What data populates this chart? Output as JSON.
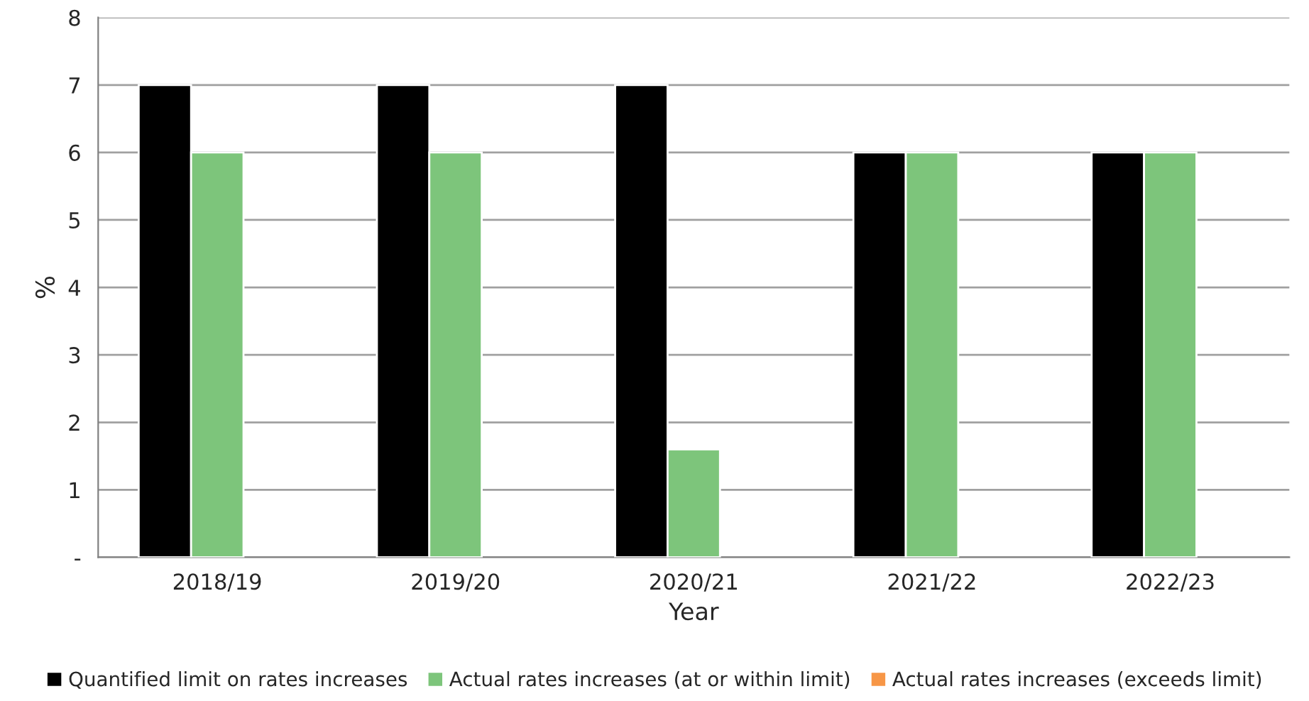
{
  "chart_data": {
    "type": "bar",
    "xlabel": "Year",
    "ylabel": "%",
    "categories": [
      "2018/19",
      "2019/20",
      "2020/21",
      "2021/22",
      "2022/23"
    ],
    "series": [
      {
        "name": "Quantified limit on rates increases",
        "color": "#000000",
        "values": [
          7,
          7,
          7,
          6,
          6
        ]
      },
      {
        "name": "Actual rates increases (at or within limit)",
        "color": "#7dc57b",
        "values": [
          6,
          6,
          1.6,
          6,
          6
        ]
      },
      {
        "name": "Actual rates increases (exceeds limit)",
        "color": "#f79646",
        "values": [
          null,
          null,
          null,
          null,
          null
        ]
      }
    ],
    "ylim": [
      0,
      8
    ],
    "yticks": [
      {
        "value": 0,
        "label": "-"
      },
      1,
      2,
      3,
      4,
      5,
      6,
      7,
      8
    ],
    "grid": "y",
    "legend": "bottom"
  }
}
